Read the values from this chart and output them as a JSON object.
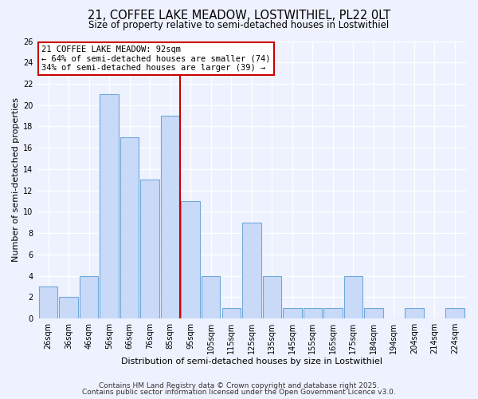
{
  "title": "21, COFFEE LAKE MEADOW, LOSTWITHIEL, PL22 0LT",
  "subtitle": "Size of property relative to semi-detached houses in Lostwithiel",
  "xlabel": "Distribution of semi-detached houses by size in Lostwithiel",
  "ylabel": "Number of semi-detached properties",
  "bar_labels": [
    "26sqm",
    "36sqm",
    "46sqm",
    "56sqm",
    "66sqm",
    "76sqm",
    "85sqm",
    "95sqm",
    "105sqm",
    "115sqm",
    "125sqm",
    "135sqm",
    "145sqm",
    "155sqm",
    "165sqm",
    "175sqm",
    "184sqm",
    "194sqm",
    "204sqm",
    "214sqm",
    "224sqm"
  ],
  "bar_values": [
    3,
    2,
    4,
    21,
    17,
    13,
    19,
    11,
    4,
    1,
    9,
    4,
    1,
    1,
    1,
    4,
    1,
    0,
    1,
    0,
    1
  ],
  "bar_color": "#c9daf8",
  "bar_edge_color": "#6fa8dc",
  "vline_color": "#cc0000",
  "annotation_title": "21 COFFEE LAKE MEADOW: 92sqm",
  "annotation_line1": "← 64% of semi-detached houses are smaller (74)",
  "annotation_line2": "34% of semi-detached houses are larger (39) →",
  "annotation_box_edge": "#cc0000",
  "ylim": [
    0,
    26
  ],
  "yticks": [
    0,
    2,
    4,
    6,
    8,
    10,
    12,
    14,
    16,
    18,
    20,
    22,
    24,
    26
  ],
  "footer1": "Contains HM Land Registry data © Crown copyright and database right 2025.",
  "footer2": "Contains public sector information licensed under the Open Government Licence v3.0.",
  "bg_color": "#eef2ff",
  "title_fontsize": 10.5,
  "subtitle_fontsize": 8.5,
  "axis_label_fontsize": 8,
  "tick_fontsize": 7,
  "footer_fontsize": 6.5
}
